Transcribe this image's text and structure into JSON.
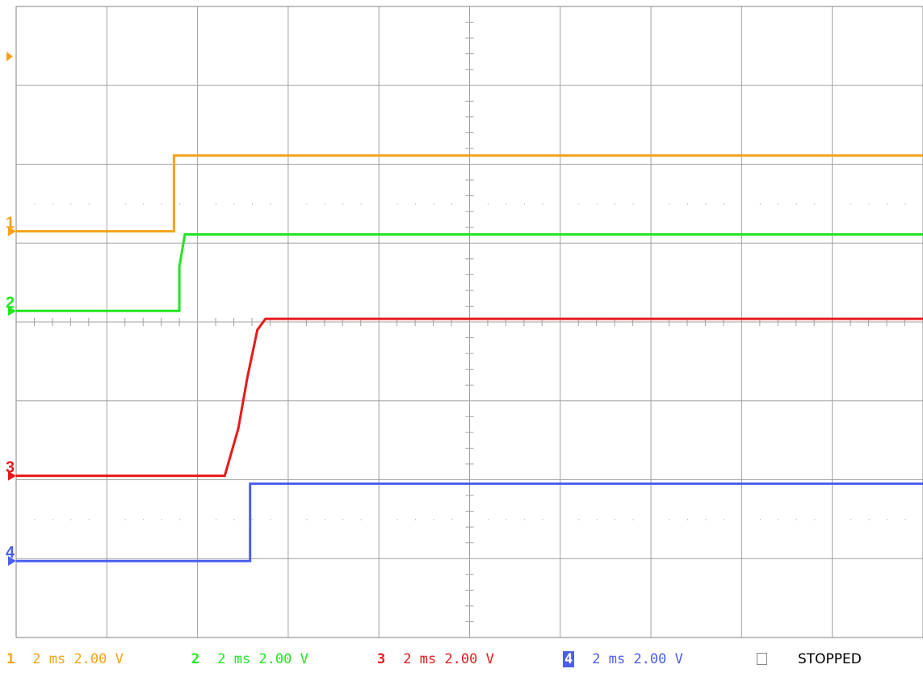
{
  "chart_data": {
    "type": "line",
    "title": "",
    "xlabel": "",
    "ylabel": "",
    "x_divisions": 10,
    "y_divisions": 8,
    "grid": true,
    "state": "STOPPED",
    "channels": [
      {
        "number": "1",
        "color": "#f7a21b",
        "timebase": "2 ms",
        "scale": "2.00 V",
        "ground_div": 5.15,
        "x": [
          0,
          1.74,
          1.74,
          10
        ],
        "y": [
          5.15,
          5.15,
          6.11,
          6.11
        ]
      },
      {
        "number": "2",
        "color": "#22e622",
        "timebase": "2 ms",
        "scale": "2.00 V",
        "ground_div": 4.14,
        "x": [
          0,
          1.8,
          1.8,
          1.86,
          10
        ],
        "y": [
          4.14,
          4.14,
          4.7,
          5.11,
          5.11
        ]
      },
      {
        "number": "3",
        "color": "#e61a1a",
        "timebase": "2 ms",
        "scale": "2.00 V",
        "ground_div": 2.05,
        "x": [
          0,
          2.3,
          2.45,
          2.55,
          2.66,
          2.75,
          10
        ],
        "y": [
          2.05,
          2.05,
          2.65,
          3.3,
          3.9,
          4.04,
          4.04
        ]
      },
      {
        "number": "4",
        "color": "#4a5ef0",
        "timebase": "2 ms",
        "scale": "2.00 V",
        "ground_div": 0.97,
        "x": [
          0,
          2.58,
          2.58,
          10
        ],
        "y": [
          0.97,
          0.97,
          1.95,
          1.95
        ]
      }
    ]
  }
}
